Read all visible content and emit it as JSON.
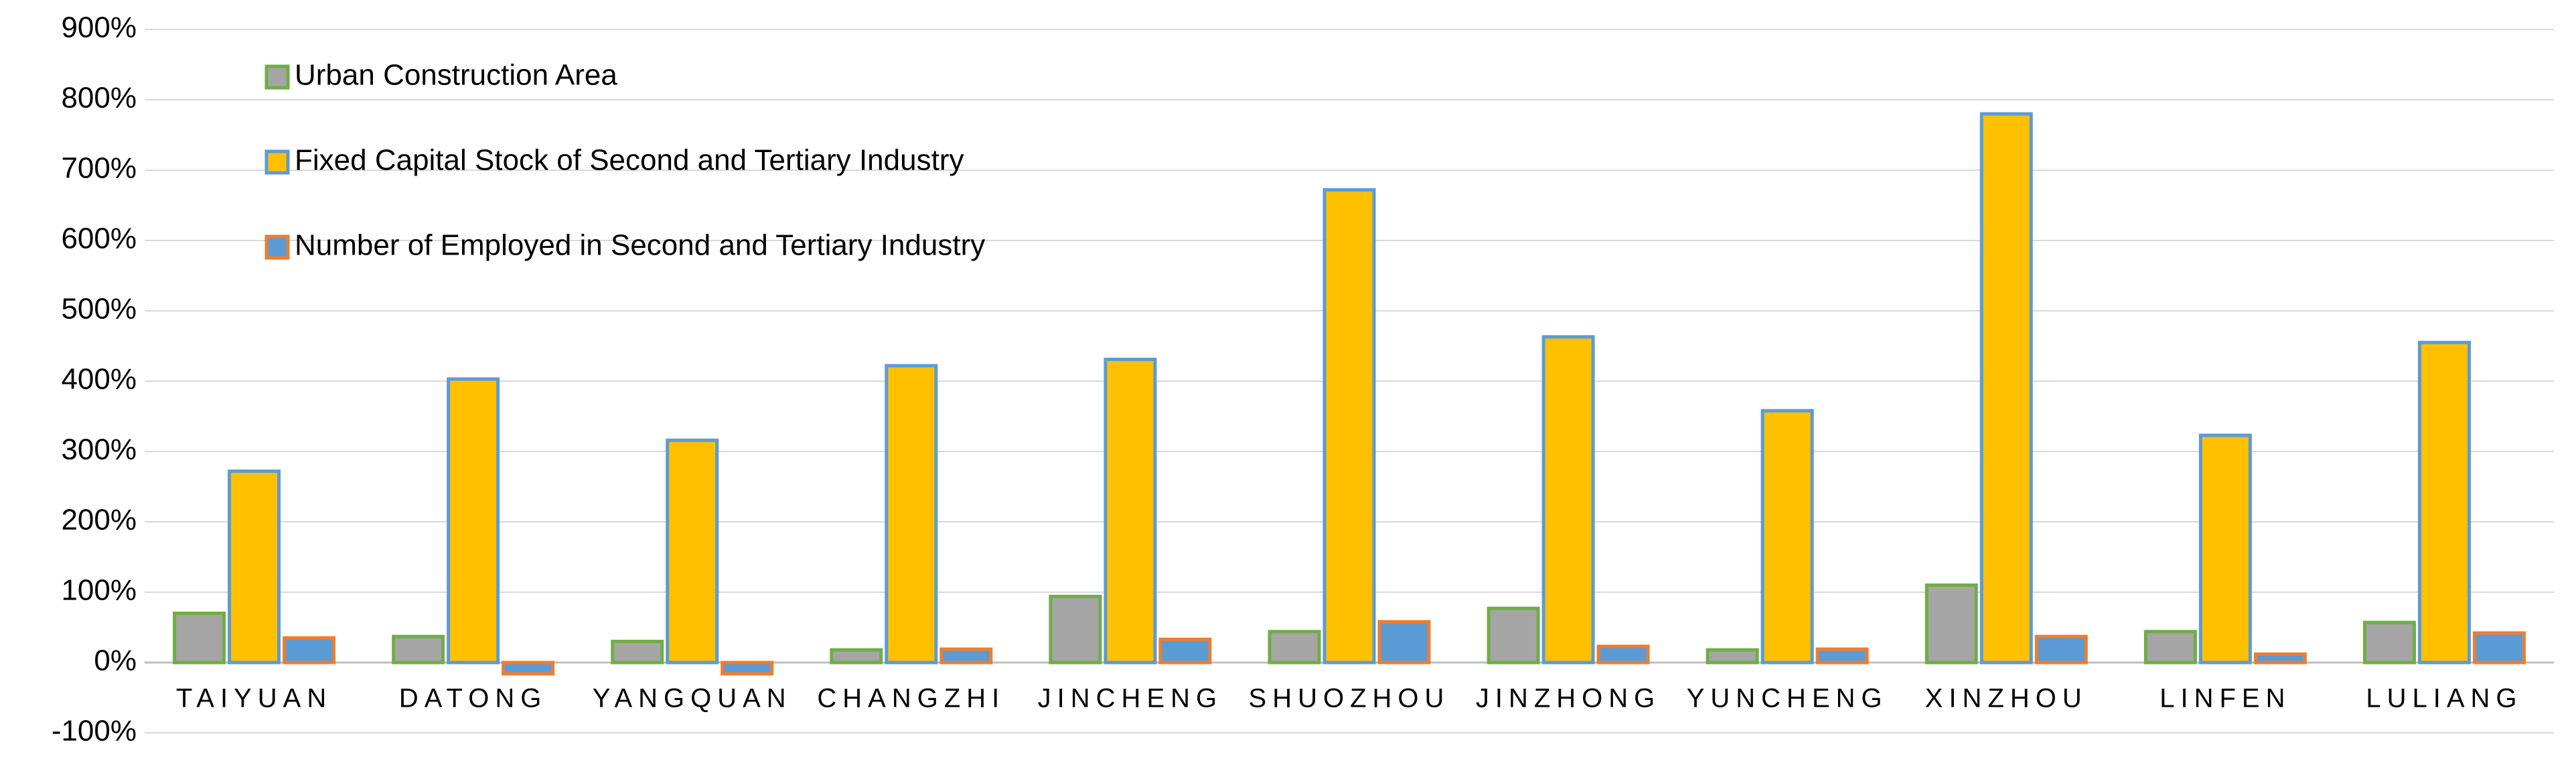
{
  "chart_data": {
    "type": "bar",
    "categories": [
      "TAIYUAN",
      "DATONG",
      "YANGQUAN",
      "CHANGZHI",
      "JINCHENG",
      "SHUOZHOU",
      "JINZHONG",
      "YUNCHENG",
      "XINZHOU",
      "LINFEN",
      "LULIANG"
    ],
    "series": [
      {
        "name": "Urban Construction Area",
        "color": "#a5a5a5",
        "stroke": "#70ad47",
        "values": [
          70,
          37,
          30,
          18,
          94,
          44,
          77,
          18,
          110,
          44,
          57
        ]
      },
      {
        "name": "Fixed Capital Stock of Second and Tertiary Industry",
        "color": "#ffc000",
        "stroke": "#5b9bd5",
        "values": [
          272,
          403,
          316,
          422,
          431,
          672,
          463,
          358,
          780,
          323,
          455
        ]
      },
      {
        "name": "Number of Employed in Second and Tertiary Industry",
        "color": "#5b9bd5",
        "stroke": "#ed7d31",
        "values": [
          35,
          -16,
          -16,
          19,
          33,
          58,
          23,
          19,
          37,
          12,
          42
        ]
      }
    ],
    "ylim": [
      -100,
      900
    ],
    "yticks": [
      {
        "value": -100,
        "label": "-100%"
      },
      {
        "value": 0,
        "label": "0%"
      },
      {
        "value": 100,
        "label": "100%"
      },
      {
        "value": 200,
        "label": "200%"
      },
      {
        "value": 300,
        "label": "300%"
      },
      {
        "value": 400,
        "label": "400%"
      },
      {
        "value": 500,
        "label": "500%"
      },
      {
        "value": 600,
        "label": "600%"
      },
      {
        "value": 700,
        "label": "700%"
      },
      {
        "value": 800,
        "label": "800%"
      },
      {
        "value": 900,
        "label": "900%"
      }
    ],
    "grid": true
  }
}
